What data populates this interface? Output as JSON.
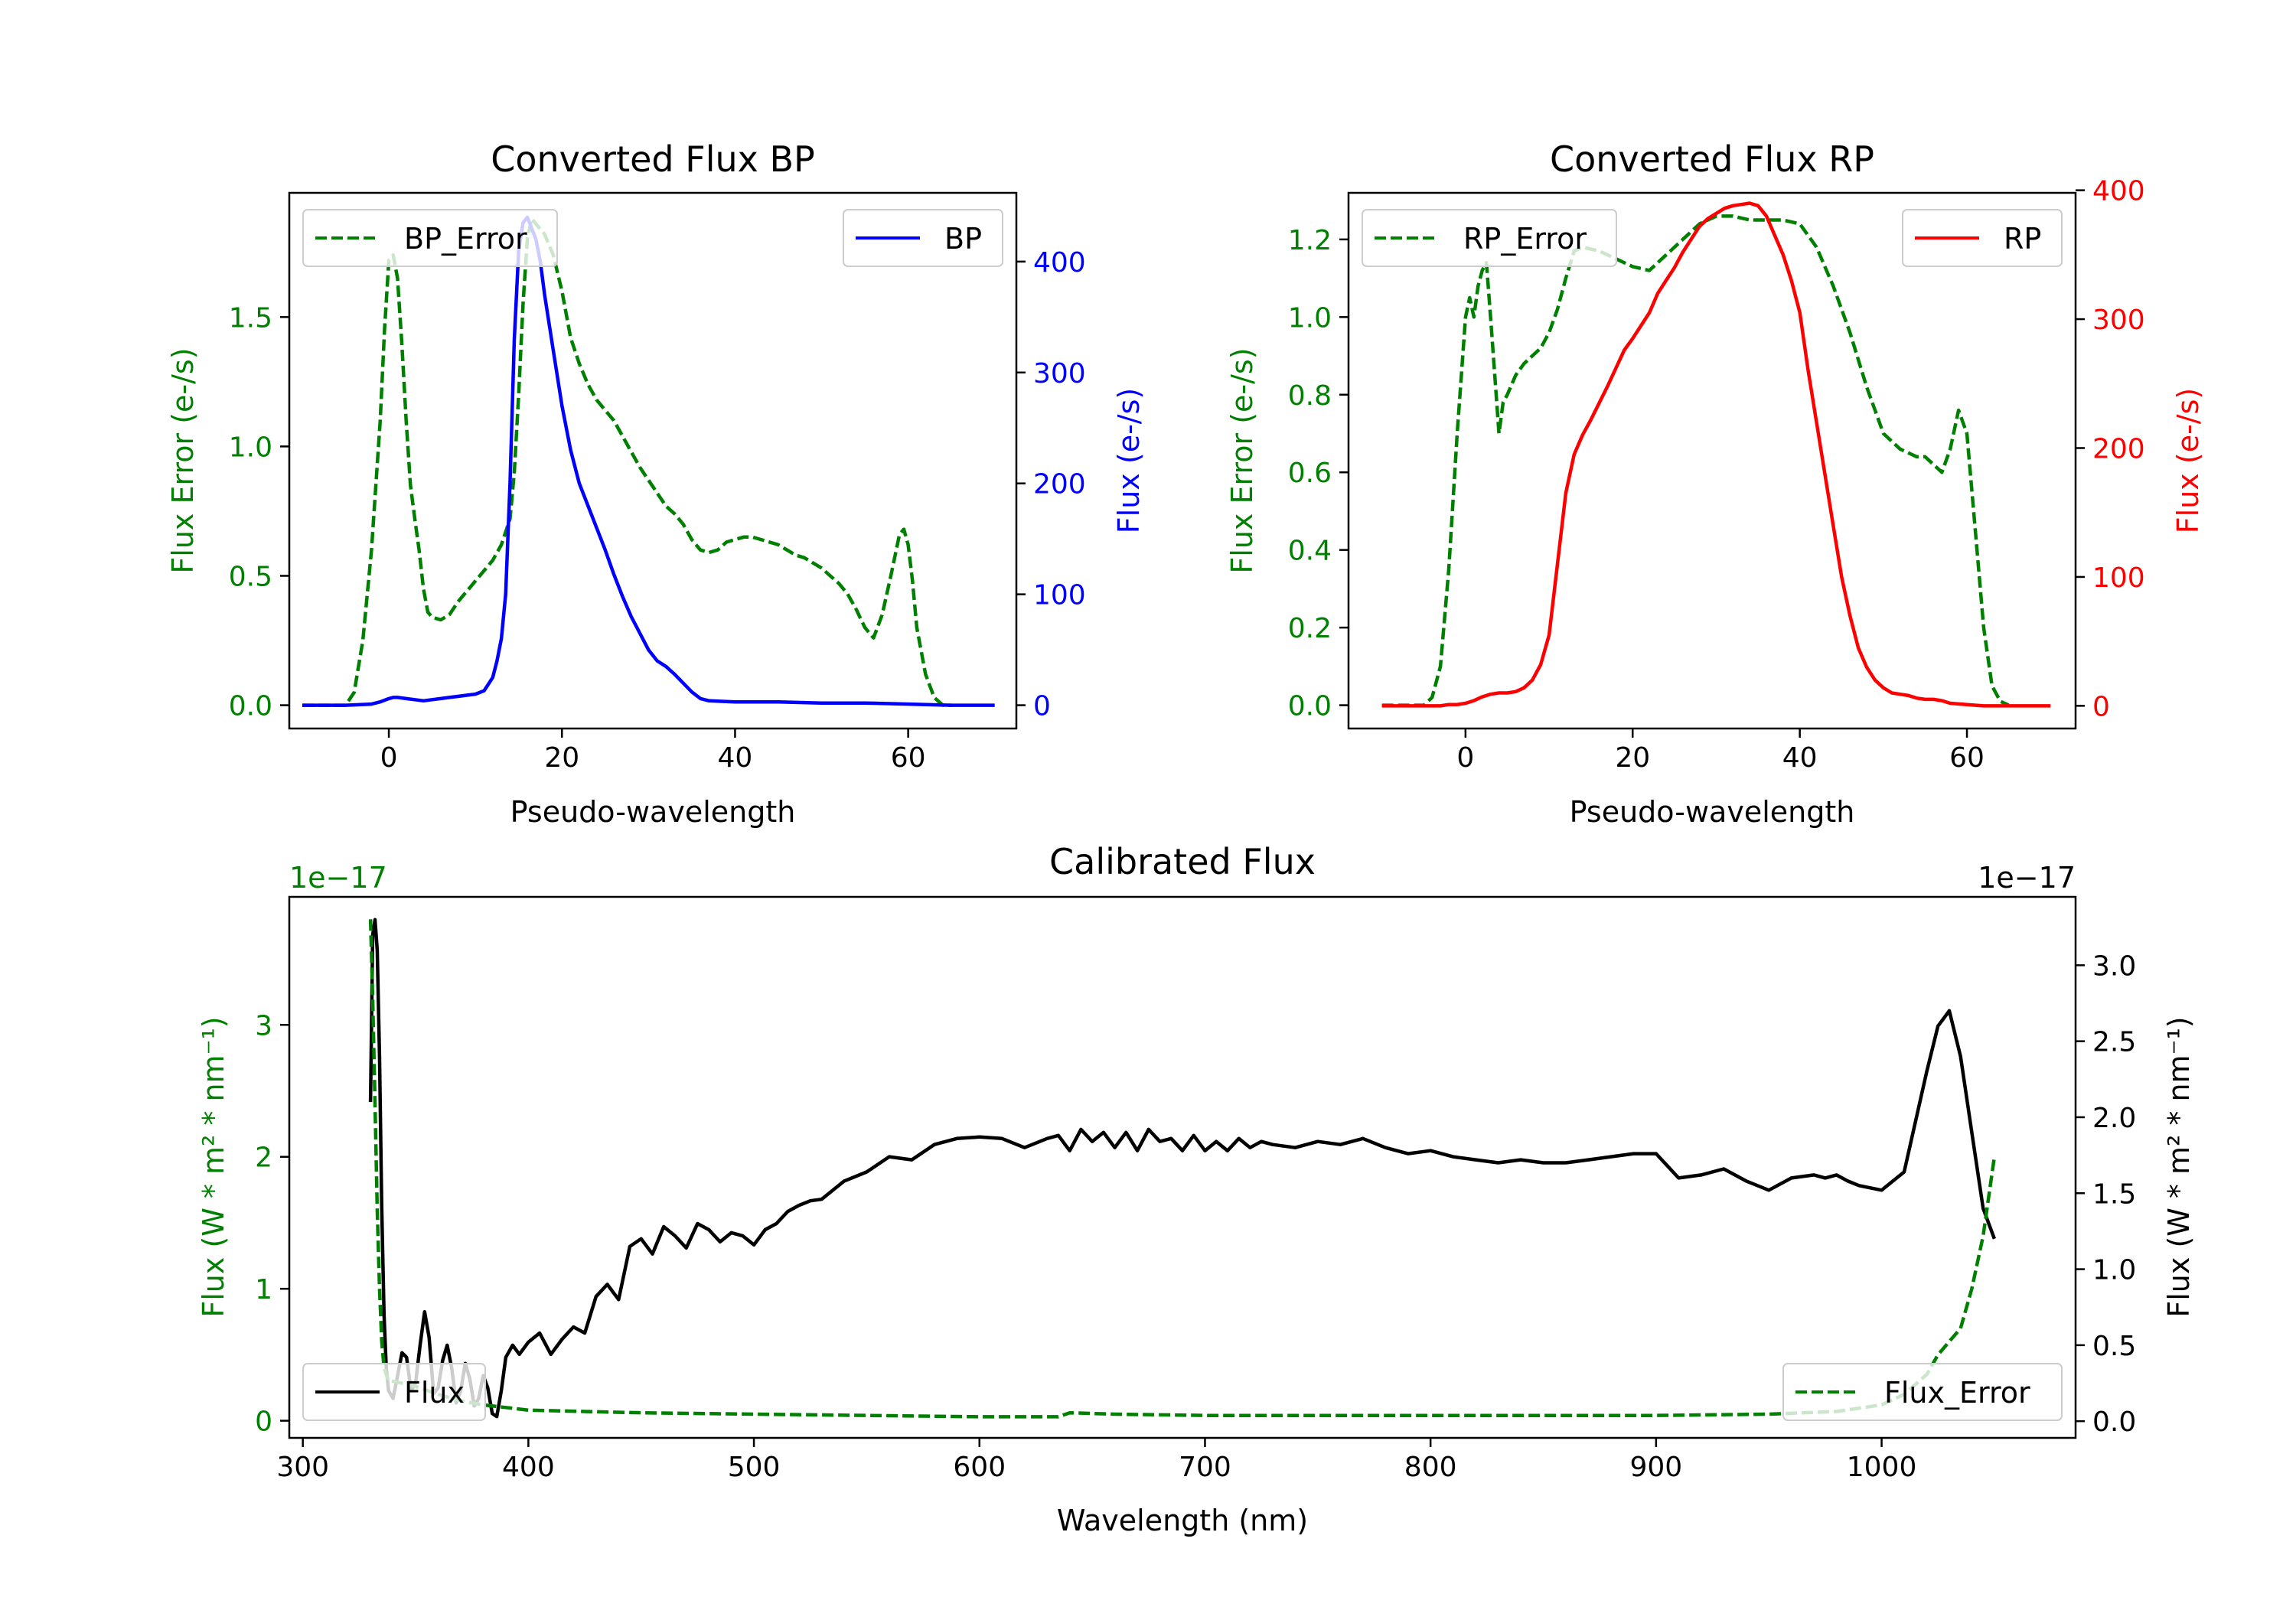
{
  "colors": {
    "green": "#008000",
    "blue": "#0000ff",
    "red": "#ff0000",
    "black": "#000000"
  },
  "chart_data": [
    {
      "type": "line",
      "title": "Converted Flux BP",
      "xlabel": "Pseudo-wavelength",
      "ylabel_left": "Flux Error (e-/s)",
      "ylabel_right": "Flux (e-/s)",
      "xlim": [
        -11.5,
        72.5
      ],
      "ylim_left": [
        -0.09,
        1.98
      ],
      "ylim_right": [
        -21,
        462
      ],
      "xticks": [
        0,
        20,
        40,
        60
      ],
      "xtick_labels": [
        "0",
        "20",
        "40",
        "60"
      ],
      "yticks_left": [
        0.0,
        0.5,
        1.0,
        1.5
      ],
      "ytick_labels_left": [
        "0.0",
        "0.5",
        "1.0",
        "1.5"
      ],
      "yticks_right": [
        0,
        100,
        200,
        300,
        400
      ],
      "ytick_labels_right": [
        "0",
        "100",
        "200",
        "300",
        "400"
      ],
      "legend_left_placement": "upper left",
      "legend_right_placement": "upper right",
      "series": [
        {
          "name": "BP_Error",
          "axis": "left",
          "color": "#008000",
          "style": "dashed",
          "x": [
            -10,
            -5,
            -4,
            -3,
            -2,
            -1,
            -0.5,
            0,
            0.5,
            1,
            1.5,
            2,
            2.5,
            3,
            3.5,
            4,
            4.5,
            5,
            6,
            7,
            8,
            9,
            10,
            11,
            12,
            13,
            14,
            14.5,
            15,
            15.5,
            16,
            16.5,
            17,
            18,
            19,
            20,
            21,
            22,
            23,
            24,
            25,
            26,
            27,
            28,
            29,
            30,
            31,
            32,
            33,
            34,
            35,
            36,
            37,
            38,
            39,
            40,
            41,
            42,
            43,
            44,
            45,
            46,
            47,
            48,
            49,
            50,
            51,
            52,
            53,
            54,
            55,
            56,
            57,
            58,
            59,
            59.5,
            60,
            60.5,
            61,
            62,
            63,
            64,
            65
          ],
          "y": [
            0.0,
            0.0,
            0.05,
            0.25,
            0.6,
            1.1,
            1.45,
            1.72,
            1.74,
            1.65,
            1.4,
            1.1,
            0.85,
            0.72,
            0.6,
            0.45,
            0.36,
            0.34,
            0.33,
            0.35,
            0.4,
            0.44,
            0.48,
            0.52,
            0.56,
            0.62,
            0.72,
            0.9,
            1.2,
            1.55,
            1.8,
            1.88,
            1.86,
            1.82,
            1.74,
            1.6,
            1.42,
            1.32,
            1.24,
            1.18,
            1.14,
            1.1,
            1.04,
            0.98,
            0.92,
            0.87,
            0.82,
            0.77,
            0.74,
            0.7,
            0.64,
            0.6,
            0.59,
            0.6,
            0.63,
            0.64,
            0.65,
            0.65,
            0.64,
            0.63,
            0.62,
            0.6,
            0.58,
            0.57,
            0.55,
            0.53,
            0.5,
            0.47,
            0.43,
            0.37,
            0.3,
            0.26,
            0.35,
            0.5,
            0.66,
            0.68,
            0.62,
            0.48,
            0.3,
            0.12,
            0.03,
            0.0,
            0.0
          ]
        },
        {
          "name": "BP",
          "axis": "right",
          "color": "#0000ff",
          "style": "solid",
          "x": [
            -10,
            -5,
            -2,
            -1,
            0,
            0.5,
            1,
            2,
            3,
            4,
            5,
            6,
            7,
            8,
            9,
            10,
            11,
            12,
            12.5,
            13,
            13.5,
            14,
            14.5,
            15,
            15.5,
            16,
            16.5,
            17,
            17.5,
            18,
            19,
            20,
            21,
            22,
            23,
            24,
            25,
            26,
            27,
            28,
            29,
            30,
            31,
            32,
            33,
            34,
            35,
            36,
            37,
            40,
            45,
            50,
            55,
            60,
            65,
            70
          ],
          "y": [
            0,
            0,
            1,
            3,
            6,
            7,
            7,
            6,
            5,
            4,
            5,
            6,
            7,
            8,
            9,
            10,
            13,
            25,
            40,
            60,
            100,
            200,
            330,
            410,
            435,
            440,
            430,
            420,
            400,
            370,
            320,
            270,
            230,
            200,
            180,
            160,
            140,
            118,
            98,
            80,
            65,
            50,
            40,
            35,
            28,
            20,
            12,
            6,
            4,
            3,
            3,
            2,
            2,
            1,
            0,
            0
          ]
        }
      ]
    },
    {
      "type": "line",
      "title": "Converted Flux RP",
      "xlabel": "Pseudo-wavelength",
      "ylabel_left": "Flux Error (e-/s)",
      "ylabel_right": "Flux (e-/s)",
      "xlim": [
        -14,
        73
      ],
      "ylim_left": [
        -0.06,
        1.32
      ],
      "ylim_right": [
        -17.6,
        398
      ],
      "xticks": [
        0,
        20,
        40,
        60
      ],
      "xtick_labels": [
        "0",
        "20",
        "40",
        "60"
      ],
      "yticks_left": [
        0.0,
        0.2,
        0.4,
        0.6,
        0.8,
        1.0,
        1.2
      ],
      "ytick_labels_left": [
        "0.0",
        "0.2",
        "0.4",
        "0.6",
        "0.8",
        "1.0",
        "1.2"
      ],
      "yticks_right": [
        0,
        100,
        200,
        300,
        400
      ],
      "ytick_labels_right": [
        "0",
        "100",
        "200",
        "300",
        "400"
      ],
      "legend_left_placement": "upper left",
      "legend_right_placement": "upper right",
      "series": [
        {
          "name": "RP_Error",
          "axis": "left",
          "color": "#008000",
          "style": "dashed",
          "x": [
            -10,
            -5,
            -4,
            -3,
            -2,
            -1,
            0,
            0.5,
            1,
            1.5,
            2,
            2.5,
            3,
            3.5,
            4,
            4.5,
            5,
            6,
            7,
            8,
            9,
            10,
            11,
            12,
            13,
            14,
            16,
            18,
            20,
            22,
            23,
            24,
            25,
            26,
            27,
            28,
            29,
            30,
            32,
            34,
            36,
            38,
            40,
            42,
            44,
            46,
            48,
            50,
            52,
            54,
            55,
            56,
            57,
            58,
            59,
            60,
            61,
            62,
            63,
            64,
            65
          ],
          "y": [
            0.0,
            0.0,
            0.02,
            0.1,
            0.35,
            0.7,
            1.0,
            1.05,
            1.0,
            1.08,
            1.12,
            1.14,
            1.0,
            0.85,
            0.7,
            0.78,
            0.8,
            0.85,
            0.88,
            0.9,
            0.92,
            0.96,
            1.02,
            1.1,
            1.17,
            1.18,
            1.17,
            1.15,
            1.13,
            1.12,
            1.14,
            1.16,
            1.18,
            1.2,
            1.22,
            1.24,
            1.25,
            1.26,
            1.26,
            1.25,
            1.25,
            1.25,
            1.24,
            1.18,
            1.08,
            0.96,
            0.82,
            0.7,
            0.66,
            0.64,
            0.64,
            0.62,
            0.6,
            0.66,
            0.76,
            0.7,
            0.45,
            0.2,
            0.05,
            0.01,
            0.0
          ]
        },
        {
          "name": "RP",
          "axis": "right",
          "color": "#ff0000",
          "style": "solid",
          "x": [
            -10,
            -3,
            -2,
            -1,
            0,
            1,
            2,
            3,
            4,
            5,
            6,
            7,
            8,
            9,
            10,
            11,
            12,
            13,
            14,
            15,
            16,
            17,
            18,
            19,
            20,
            21,
            22,
            23,
            24,
            25,
            26,
            27,
            28,
            29,
            30,
            31,
            32,
            33,
            34,
            35,
            36,
            37,
            38,
            39,
            40,
            41,
            42,
            43,
            44,
            45,
            46,
            47,
            48,
            49,
            50,
            51,
            52,
            53,
            54,
            55,
            56,
            57,
            58,
            60,
            62,
            65,
            70
          ],
          "y": [
            0,
            0,
            1,
            1,
            2,
            4,
            7,
            9,
            10,
            10,
            11,
            14,
            20,
            32,
            55,
            110,
            165,
            195,
            210,
            222,
            235,
            248,
            262,
            276,
            285,
            295,
            305,
            320,
            330,
            340,
            352,
            362,
            372,
            378,
            382,
            386,
            388,
            389,
            390,
            388,
            380,
            365,
            350,
            330,
            305,
            260,
            220,
            180,
            140,
            100,
            70,
            45,
            30,
            20,
            14,
            10,
            9,
            8,
            6,
            5,
            5,
            4,
            2,
            1,
            0,
            0,
            0
          ]
        }
      ]
    },
    {
      "type": "line",
      "title": "Calibrated Flux",
      "xlabel": "Wavelength (nm)",
      "ylabel_left": "Flux (W * m² * nm⁻¹)",
      "ylabel_right": "Flux (W * m² * nm⁻¹)",
      "offset_left": "1e−17",
      "offset_right": "1e−17",
      "xlim": [
        294,
        1086
      ],
      "ylim_left": [
        -0.13,
        3.97
      ],
      "ylim_right": [
        -0.11,
        3.45
      ],
      "xticks": [
        300,
        400,
        500,
        600,
        700,
        800,
        900,
        1000
      ],
      "xtick_labels": [
        "300",
        "400",
        "500",
        "600",
        "700",
        "800",
        "900",
        "1000"
      ],
      "yticks_left": [
        0,
        1,
        2,
        3
      ],
      "ytick_labels_left": [
        "0",
        "1",
        "2",
        "3"
      ],
      "yticks_right": [
        0.0,
        0.5,
        1.0,
        1.5,
        2.0,
        2.5,
        3.0
      ],
      "ytick_labels_right": [
        "0.0",
        "0.5",
        "1.0",
        "1.5",
        "2.0",
        "2.5",
        "3.0"
      ],
      "legend_left_placement": "lower left",
      "legend_right_placement": "lower right",
      "series": [
        {
          "name": "Flux",
          "axis": "right",
          "color": "#000000",
          "style": "solid",
          "x": [
            330,
            331,
            332,
            333,
            334,
            335,
            336,
            337,
            338,
            340,
            342,
            344,
            346,
            348,
            350,
            352,
            354,
            356,
            358,
            360,
            362,
            364,
            366,
            368,
            370,
            372,
            374,
            376,
            378,
            380,
            382,
            384,
            386,
            388,
            390,
            393,
            396,
            400,
            405,
            410,
            415,
            420,
            425,
            430,
            435,
            440,
            445,
            450,
            455,
            460,
            465,
            470,
            475,
            480,
            485,
            490,
            495,
            500,
            505,
            510,
            515,
            520,
            525,
            530,
            540,
            550,
            560,
            570,
            580,
            590,
            600,
            610,
            620,
            630,
            635,
            640,
            645,
            650,
            655,
            660,
            665,
            670,
            675,
            680,
            685,
            690,
            695,
            700,
            705,
            710,
            715,
            720,
            725,
            730,
            740,
            750,
            760,
            770,
            780,
            790,
            800,
            810,
            820,
            830,
            840,
            850,
            860,
            870,
            880,
            890,
            900,
            910,
            920,
            930,
            940,
            950,
            960,
            970,
            975,
            980,
            985,
            990,
            1000,
            1010,
            1020,
            1025,
            1030,
            1035,
            1040,
            1045,
            1050
          ],
          "y": [
            2.1,
            3.2,
            3.3,
            3.1,
            2.4,
            1.4,
            0.7,
            0.35,
            0.2,
            0.15,
            0.3,
            0.45,
            0.42,
            0.2,
            0.25,
            0.5,
            0.72,
            0.55,
            0.18,
            0.22,
            0.4,
            0.5,
            0.35,
            0.12,
            0.2,
            0.38,
            0.28,
            0.1,
            0.15,
            0.3,
            0.22,
            0.05,
            0.03,
            0.2,
            0.42,
            0.5,
            0.44,
            0.52,
            0.58,
            0.44,
            0.54,
            0.62,
            0.58,
            0.82,
            0.9,
            0.8,
            1.15,
            1.2,
            1.1,
            1.28,
            1.22,
            1.14,
            1.3,
            1.26,
            1.18,
            1.24,
            1.22,
            1.16,
            1.26,
            1.3,
            1.38,
            1.42,
            1.45,
            1.46,
            1.58,
            1.64,
            1.74,
            1.72,
            1.82,
            1.86,
            1.87,
            1.86,
            1.8,
            1.86,
            1.88,
            1.78,
            1.92,
            1.84,
            1.9,
            1.8,
            1.9,
            1.78,
            1.92,
            1.84,
            1.86,
            1.78,
            1.88,
            1.78,
            1.84,
            1.78,
            1.86,
            1.8,
            1.84,
            1.82,
            1.8,
            1.84,
            1.82,
            1.86,
            1.8,
            1.76,
            1.78,
            1.74,
            1.72,
            1.7,
            1.72,
            1.7,
            1.7,
            1.72,
            1.74,
            1.76,
            1.76,
            1.6,
            1.62,
            1.66,
            1.58,
            1.52,
            1.6,
            1.62,
            1.6,
            1.62,
            1.58,
            1.55,
            1.52,
            1.64,
            2.3,
            2.6,
            2.7,
            2.4,
            1.9,
            1.4,
            1.2
          ]
        },
        {
          "name": "Flux_Error",
          "axis": "left",
          "color": "#008000",
          "style": "dashed",
          "x": [
            330,
            331,
            332,
            333,
            334,
            335,
            336,
            338,
            340,
            345,
            350,
            360,
            370,
            380,
            390,
            400,
            450,
            500,
            550,
            600,
            635,
            640,
            660,
            700,
            750,
            800,
            850,
            900,
            950,
            980,
            1000,
            1010,
            1020,
            1025,
            1030,
            1035,
            1040,
            1045,
            1050
          ],
          "y": [
            3.8,
            3.2,
            2.4,
            1.6,
            1.0,
            0.6,
            0.4,
            0.3,
            0.3,
            0.28,
            0.26,
            0.2,
            0.15,
            0.12,
            0.1,
            0.08,
            0.06,
            0.05,
            0.04,
            0.03,
            0.03,
            0.06,
            0.05,
            0.04,
            0.04,
            0.04,
            0.04,
            0.04,
            0.05,
            0.07,
            0.12,
            0.2,
            0.35,
            0.5,
            0.6,
            0.7,
            1.0,
            1.4,
            2.0
          ]
        }
      ]
    }
  ]
}
